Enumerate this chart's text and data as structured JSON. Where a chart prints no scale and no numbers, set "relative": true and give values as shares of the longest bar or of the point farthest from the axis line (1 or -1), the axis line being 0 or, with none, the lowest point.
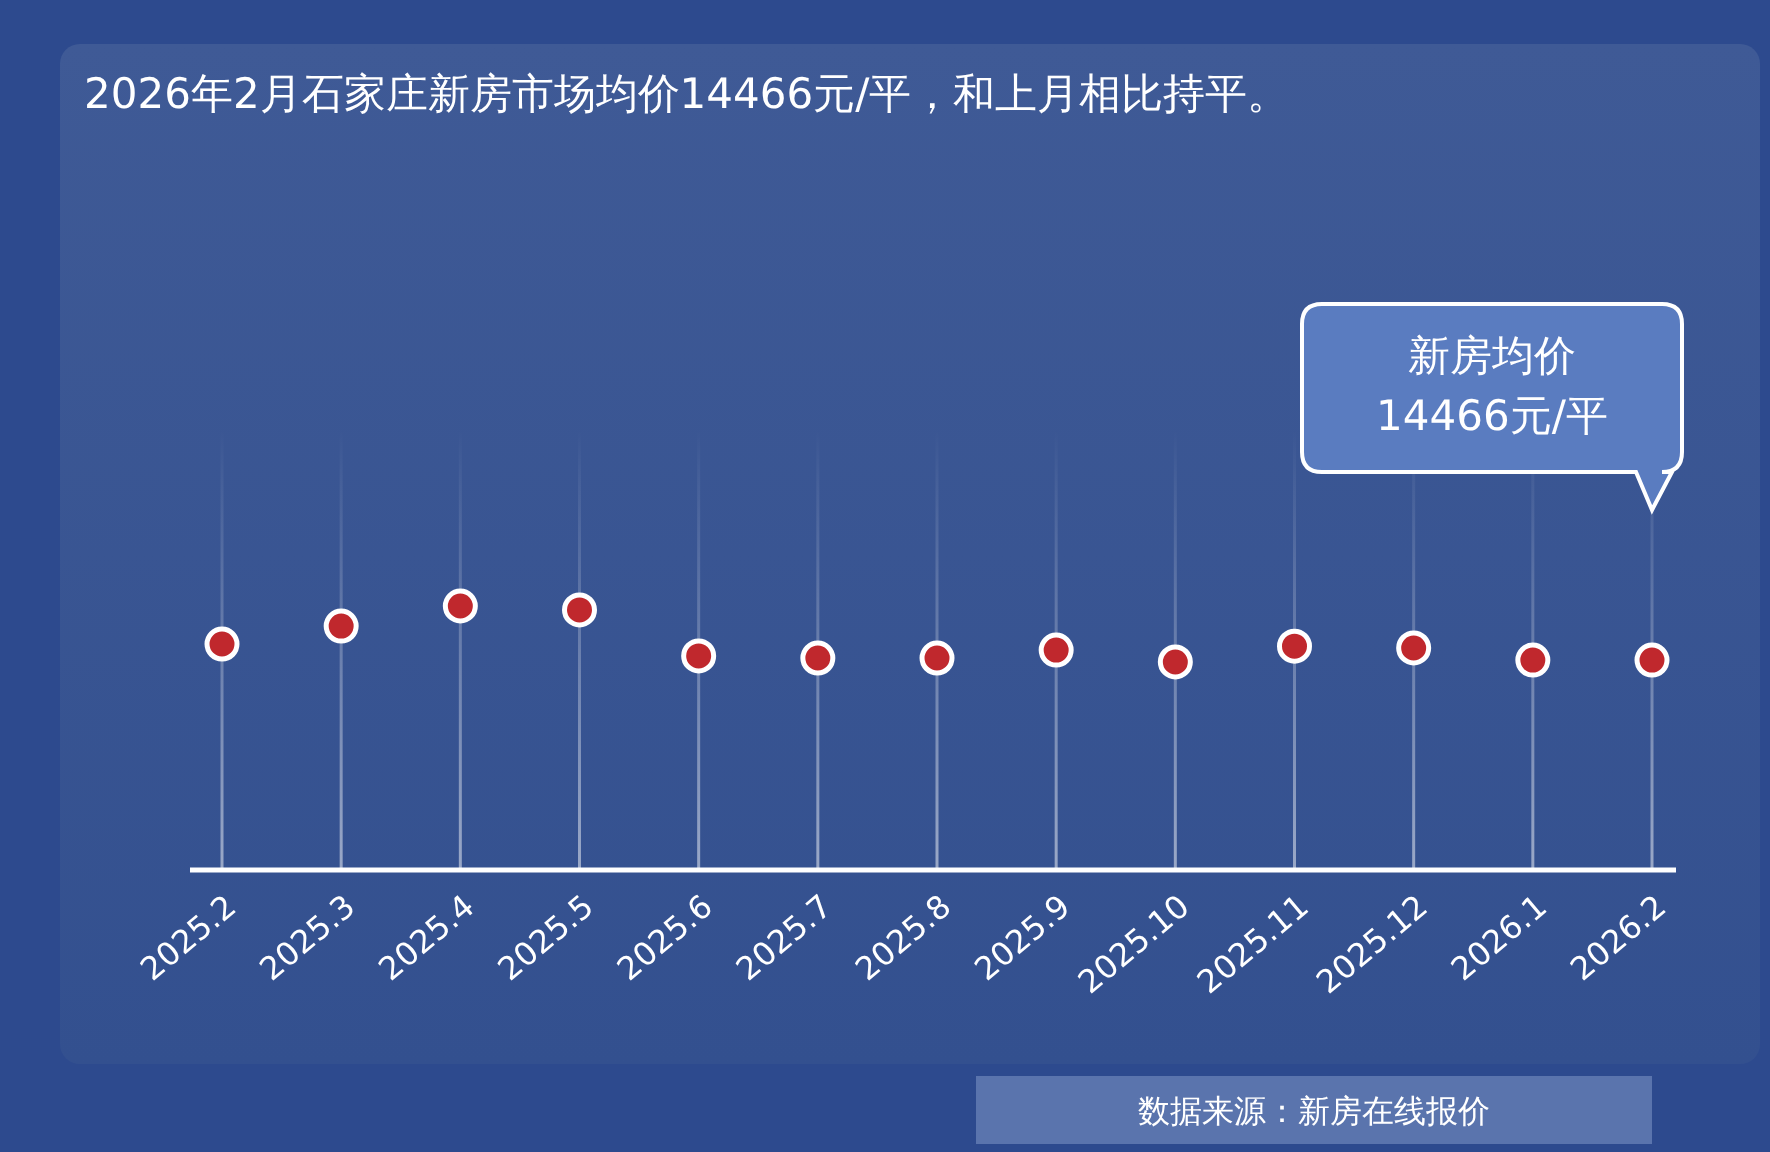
{
  "chart_data": {
    "type": "scatter",
    "title": "2026年2月石家庄新房市场均价14466元/平，和上月相比持平。",
    "categories": [
      "2025.2",
      "2025.3",
      "2025.4",
      "2025.5",
      "2025.6",
      "2025.7",
      "2025.8",
      "2025.9",
      "2025.10",
      "2025.11",
      "2025.12",
      "2026.1",
      "2026.2"
    ],
    "values": [
      0.856,
      0.924,
      1,
      0.985,
      0.811,
      0.803,
      0.803,
      0.833,
      0.788,
      0.848,
      0.841,
      0.795,
      0.795
    ],
    "color": "#c0282d",
    "relative": true,
    "marker": "circle",
    "grid": "x",
    "annotations": [
      "新房均价\n14466元/平",
      "数据来源：新房在线报价"
    ]
  }
}
